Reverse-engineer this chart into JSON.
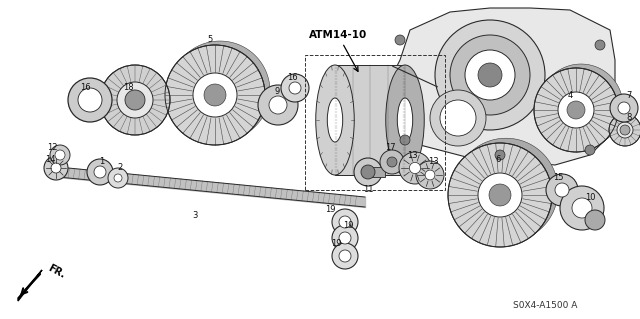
{
  "bg_color": "#ffffff",
  "fig_width": 6.4,
  "fig_height": 3.19,
  "dpi": 100,
  "diagram_code": "S0X4-A1500 A",
  "ref_label": "ATM14-10",
  "fr_label": "FR.",
  "line_color": "#2a2a2a",
  "gear_face": "#d8d8d8",
  "gear_dark": "#555555",
  "housing_face": "#e0e0e0"
}
